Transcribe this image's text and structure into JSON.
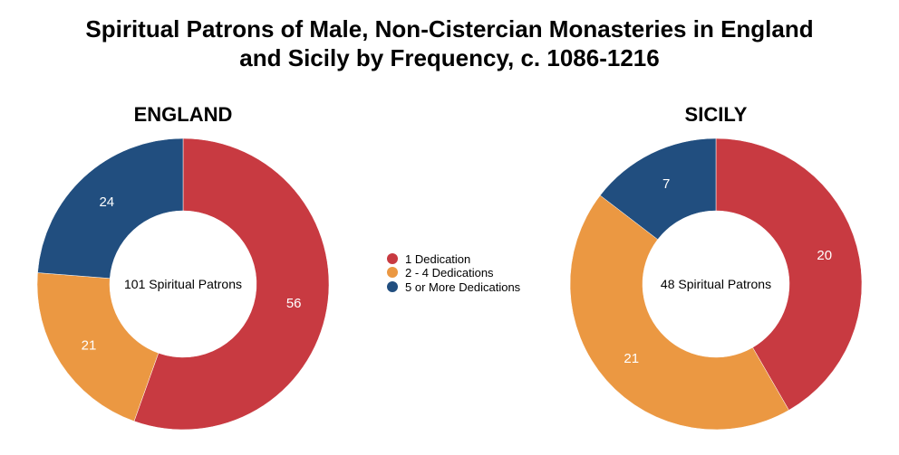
{
  "title_lines": [
    "Spiritual Patrons of Male, Non-Cistercian Monasteries in England",
    "and Sicily by Frequency, c. 1086-1216"
  ],
  "chart_data": [
    {
      "type": "pie",
      "style": "donut",
      "title": "ENGLAND",
      "center_label": "101 Spiritual Patrons",
      "categories": [
        "1 Dedication",
        "2 - 4 Dedications",
        "5 or More Dedications"
      ],
      "values": [
        56,
        21,
        24
      ],
      "colors": [
        "#c83a41",
        "#eb9842",
        "#214e7f"
      ]
    },
    {
      "type": "pie",
      "style": "donut",
      "title": "SICILY",
      "center_label": "48 Spiritual Patrons",
      "categories": [
        "1 Dedication",
        "2 - 4 Dedications",
        "5 or More Dedications"
      ],
      "values": [
        20,
        21,
        7
      ],
      "colors": [
        "#c83a41",
        "#eb9842",
        "#214e7f"
      ]
    }
  ],
  "legend": {
    "items": [
      {
        "label": "1 Dedication",
        "color": "#c83a41"
      },
      {
        "label": "2 - 4 Dedications",
        "color": "#eb9842"
      },
      {
        "label": "5 or More Dedications",
        "color": "#214e7f"
      }
    ]
  }
}
